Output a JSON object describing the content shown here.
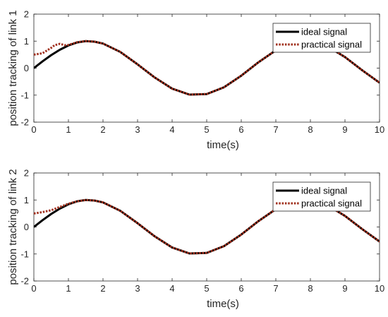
{
  "chart_data": [
    {
      "type": "line",
      "title": "",
      "xlabel": "time(s)",
      "ylabel": "position tracking of link 1",
      "xlim": [
        0,
        10
      ],
      "ylim": [
        -2,
        2
      ],
      "xticks": [
        "0",
        "1",
        "2",
        "3",
        "4",
        "5",
        "6",
        "7",
        "8",
        "9",
        "10"
      ],
      "yticks": [
        "-2",
        "-1",
        "0",
        "1",
        "2"
      ],
      "grid": false,
      "legend_position": "top-right",
      "series": [
        {
          "name": "ideal signal",
          "style": "solid",
          "color": "#000000",
          "x": [
            0,
            0.25,
            0.5,
            0.75,
            1,
            1.25,
            1.5,
            1.75,
            2,
            2.5,
            3,
            3.5,
            4,
            4.5,
            5,
            5.5,
            6,
            6.5,
            7,
            7.5,
            8,
            8.5,
            9,
            9.5,
            10
          ],
          "y": [
            0,
            0.25,
            0.48,
            0.68,
            0.84,
            0.95,
            1.0,
            0.98,
            0.91,
            0.6,
            0.14,
            -0.35,
            -0.76,
            -0.98,
            -0.96,
            -0.71,
            -0.28,
            0.22,
            0.66,
            0.94,
            0.99,
            0.8,
            0.41,
            -0.08,
            -0.54
          ]
        },
        {
          "name": "practical signal",
          "style": "dotted",
          "color": "#a0301e",
          "x": [
            0,
            0.25,
            0.5,
            0.6,
            0.75,
            0.9,
            1,
            1.25,
            1.5,
            1.75,
            2,
            2.5,
            3,
            3.5,
            4,
            4.5,
            5,
            5.5,
            6,
            6.5,
            7,
            7.5,
            8,
            8.5,
            9,
            9.5,
            10
          ],
          "y": [
            0.5,
            0.55,
            0.75,
            0.85,
            0.9,
            0.85,
            0.86,
            0.96,
            1.0,
            0.98,
            0.91,
            0.6,
            0.14,
            -0.35,
            -0.76,
            -0.98,
            -0.96,
            -0.71,
            -0.28,
            0.22,
            0.66,
            0.94,
            0.99,
            0.8,
            0.41,
            -0.08,
            -0.54
          ]
        }
      ]
    },
    {
      "type": "line",
      "title": "",
      "xlabel": "time(s)",
      "ylabel": "position tracking of link 2",
      "xlim": [
        0,
        10
      ],
      "ylim": [
        -2,
        2
      ],
      "xticks": [
        "0",
        "1",
        "2",
        "3",
        "4",
        "5",
        "6",
        "7",
        "8",
        "9",
        "10"
      ],
      "yticks": [
        "-2",
        "-1",
        "0",
        "1",
        "2"
      ],
      "grid": false,
      "legend_position": "top-right",
      "series": [
        {
          "name": "ideal signal",
          "style": "solid",
          "color": "#000000",
          "x": [
            0,
            0.25,
            0.5,
            0.75,
            1,
            1.25,
            1.5,
            1.75,
            2,
            2.5,
            3,
            3.5,
            4,
            4.5,
            5,
            5.5,
            6,
            6.5,
            7,
            7.5,
            8,
            8.5,
            9,
            9.5,
            10
          ],
          "y": [
            0,
            0.25,
            0.48,
            0.68,
            0.84,
            0.95,
            1.0,
            0.98,
            0.91,
            0.6,
            0.14,
            -0.35,
            -0.76,
            -0.98,
            -0.96,
            -0.71,
            -0.28,
            0.22,
            0.66,
            0.94,
            0.99,
            0.8,
            0.41,
            -0.08,
            -0.54
          ]
        },
        {
          "name": "practical signal",
          "style": "dotted",
          "color": "#a0301e",
          "x": [
            0,
            0.25,
            0.5,
            0.75,
            1,
            1.25,
            1.5,
            1.75,
            2,
            2.5,
            3,
            3.5,
            4,
            4.5,
            5,
            5.5,
            6,
            6.5,
            7,
            7.5,
            8,
            8.5,
            9,
            9.5,
            10
          ],
          "y": [
            0.5,
            0.55,
            0.62,
            0.74,
            0.86,
            0.95,
            1.0,
            0.98,
            0.91,
            0.6,
            0.14,
            -0.35,
            -0.76,
            -0.98,
            -0.96,
            -0.71,
            -0.28,
            0.22,
            0.66,
            0.94,
            0.99,
            0.8,
            0.41,
            -0.08,
            -0.54
          ]
        }
      ]
    }
  ]
}
